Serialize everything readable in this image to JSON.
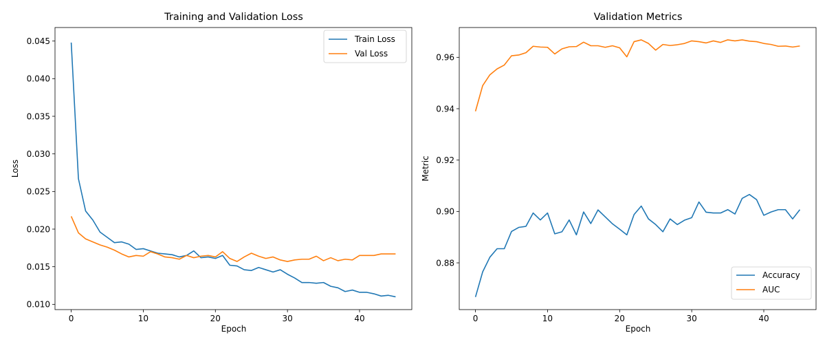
{
  "chart_data": [
    {
      "type": "line",
      "title": "Training and Validation Loss",
      "xlabel": "Epoch",
      "ylabel": "Loss",
      "xlim": [
        -2.25,
        47.25
      ],
      "ylim": [
        0.0093,
        0.0468
      ],
      "xticks": [
        0,
        10,
        20,
        30,
        40
      ],
      "yticks": [
        0.01,
        0.015,
        0.02,
        0.025,
        0.03,
        0.035,
        0.04,
        0.045
      ],
      "ytick_labels": [
        "0.010",
        "0.015",
        "0.020",
        "0.025",
        "0.030",
        "0.035",
        "0.040",
        "0.045"
      ],
      "legend": "upper right",
      "grid": false,
      "x": [
        0,
        1,
        2,
        3,
        4,
        5,
        6,
        7,
        8,
        9,
        10,
        11,
        12,
        13,
        14,
        15,
        16,
        17,
        18,
        19,
        20,
        21,
        22,
        23,
        24,
        25,
        26,
        27,
        28,
        29,
        30,
        31,
        32,
        33,
        34,
        35,
        36,
        37,
        38,
        39,
        40,
        41,
        42,
        43,
        44,
        45
      ],
      "series": [
        {
          "name": "Train Loss",
          "color": "#1f77b4",
          "values": [
            0.0448,
            0.0267,
            0.0224,
            0.0212,
            0.0196,
            0.0189,
            0.0182,
            0.0183,
            0.018,
            0.0173,
            0.0174,
            0.0171,
            0.0168,
            0.0167,
            0.0166,
            0.0163,
            0.0165,
            0.0171,
            0.0162,
            0.0163,
            0.0161,
            0.0165,
            0.0152,
            0.0151,
            0.0146,
            0.0145,
            0.0149,
            0.0146,
            0.0143,
            0.0146,
            0.014,
            0.0135,
            0.0129,
            0.0129,
            0.0128,
            0.0129,
            0.0124,
            0.0122,
            0.0117,
            0.0119,
            0.0116,
            0.0116,
            0.0114,
            0.0111,
            0.0112,
            0.011
          ]
        },
        {
          "name": "Val Loss",
          "color": "#ff7f0e",
          "values": [
            0.0217,
            0.0195,
            0.0187,
            0.0183,
            0.0179,
            0.0176,
            0.0172,
            0.0167,
            0.0163,
            0.0165,
            0.0164,
            0.017,
            0.0167,
            0.0163,
            0.0162,
            0.016,
            0.0165,
            0.0162,
            0.0164,
            0.0165,
            0.0163,
            0.017,
            0.0161,
            0.0157,
            0.0163,
            0.0168,
            0.0164,
            0.0161,
            0.0163,
            0.0159,
            0.0157,
            0.0159,
            0.016,
            0.016,
            0.0164,
            0.0158,
            0.0162,
            0.0158,
            0.016,
            0.0159,
            0.0165,
            0.0165,
            0.0165,
            0.0167,
            0.0167,
            0.0167
          ]
        }
      ]
    },
    {
      "type": "line",
      "title": "Validation Metrics",
      "xlabel": "Epoch",
      "ylabel": "Metric",
      "xlim": [
        -2.25,
        47.25
      ],
      "ylim": [
        0.8618,
        0.9716
      ],
      "xticks": [
        0,
        10,
        20,
        30,
        40
      ],
      "yticks": [
        0.88,
        0.9,
        0.92,
        0.94,
        0.96
      ],
      "ytick_labels": [
        "0.88",
        "0.90",
        "0.92",
        "0.94",
        "0.96"
      ],
      "legend": "lower right",
      "grid": false,
      "x": [
        0,
        1,
        2,
        3,
        4,
        5,
        6,
        7,
        8,
        9,
        10,
        11,
        12,
        13,
        14,
        15,
        16,
        17,
        18,
        19,
        20,
        21,
        22,
        23,
        24,
        25,
        26,
        27,
        28,
        29,
        30,
        31,
        32,
        33,
        34,
        35,
        36,
        37,
        38,
        39,
        40,
        41,
        42,
        43,
        44,
        45
      ],
      "series": [
        {
          "name": "Accuracy",
          "color": "#1f77b4",
          "values": [
            0.8667,
            0.8765,
            0.8822,
            0.8855,
            0.8855,
            0.8922,
            0.8938,
            0.8942,
            0.8994,
            0.8967,
            0.8994,
            0.8913,
            0.8921,
            0.8967,
            0.8909,
            0.8998,
            0.8953,
            0.9006,
            0.8979,
            0.8952,
            0.8931,
            0.8909,
            0.8988,
            0.9021,
            0.8971,
            0.8949,
            0.8921,
            0.8971,
            0.8949,
            0.8966,
            0.8976,
            0.9037,
            0.8997,
            0.8994,
            0.8994,
            0.9007,
            0.899,
            0.9051,
            0.9066,
            0.9046,
            0.8985,
            0.8998,
            0.9007,
            0.9007,
            0.8971,
            0.9007
          ]
        },
        {
          "name": "AUC",
          "color": "#ff7f0e",
          "values": [
            0.939,
            0.949,
            0.9532,
            0.9555,
            0.957,
            0.9606,
            0.9609,
            0.9618,
            0.9643,
            0.964,
            0.9639,
            0.9613,
            0.9633,
            0.9641,
            0.9642,
            0.9659,
            0.9645,
            0.9645,
            0.9639,
            0.9645,
            0.9637,
            0.9602,
            0.9661,
            0.9668,
            0.9654,
            0.9628,
            0.965,
            0.9646,
            0.9649,
            0.9654,
            0.9664,
            0.9661,
            0.9656,
            0.9664,
            0.9658,
            0.9668,
            0.9664,
            0.9668,
            0.9663,
            0.9661,
            0.9654,
            0.965,
            0.9643,
            0.9644,
            0.964,
            0.9644
          ]
        }
      ]
    }
  ]
}
